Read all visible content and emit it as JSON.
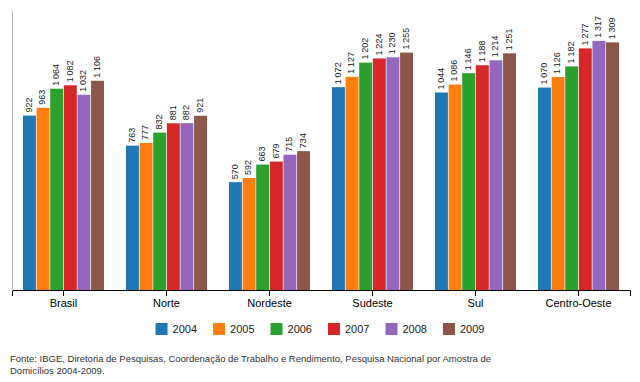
{
  "chart_data": {
    "type": "bar",
    "categories": [
      "Brasil",
      "Norte",
      "Nordeste",
      "Sudeste",
      "Sul",
      "Centro-Oeste"
    ],
    "series": [
      {
        "name": "2004",
        "values": [
          922,
          763,
          570,
          1072,
          1044,
          1070
        ],
        "value_labels": [
          "922",
          "763",
          "570",
          "1 072",
          "1 044",
          "1 070"
        ]
      },
      {
        "name": "2005",
        "values": [
          963,
          777,
          592,
          1127,
          1086,
          1126
        ],
        "value_labels": [
          "963",
          "777",
          "592",
          "1 127",
          "1 086",
          "1 126"
        ]
      },
      {
        "name": "2006",
        "values": [
          1064,
          832,
          663,
          1202,
          1146,
          1182
        ],
        "value_labels": [
          "1 064",
          "832",
          "663",
          "1 202",
          "1 146",
          "1 182"
        ]
      },
      {
        "name": "2007",
        "values": [
          1082,
          881,
          679,
          1224,
          1188,
          1277
        ],
        "value_labels": [
          "1 082",
          "881",
          "679",
          "1 224",
          "1 188",
          "1 277"
        ]
      },
      {
        "name": "2008",
        "values": [
          1032,
          882,
          715,
          1230,
          1214,
          1317
        ],
        "value_labels": [
          "1 032",
          "882",
          "715",
          "1 230",
          "1 214",
          "1 317"
        ]
      },
      {
        "name": "2009",
        "values": [
          1106,
          921,
          734,
          1255,
          1251,
          1309
        ],
        "value_labels": [
          "1 106",
          "921",
          "734",
          "1 255",
          "1 251",
          "1 309"
        ]
      }
    ],
    "ylim": [
      0,
      1480
    ],
    "data_labels": true,
    "tick_labels": "x",
    "grid": false,
    "legend": "bottom",
    "annotations": [
      "Fonte: IBGE, Diretoria de Pesquisas, Coordenação de Trabalho e Rendimento, Pesquisa Nacional por Amostra de\nDomicílios 2004-2009."
    ]
  }
}
